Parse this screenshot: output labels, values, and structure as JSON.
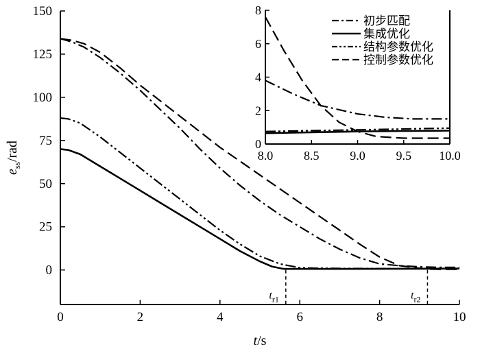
{
  "chart_data": {
    "type": "line",
    "xlabel": {
      "italic": "t",
      "rest": "/s"
    },
    "ylabel": {
      "italic": "e",
      "sub": "ss",
      "rest": "/rad"
    },
    "xlim": [
      0,
      10
    ],
    "ylim": [
      -20,
      150
    ],
    "x_ticks": [
      0,
      2,
      4,
      6,
      8,
      10
    ],
    "x_tick_labels": [
      "0",
      "2",
      "4",
      "6",
      "8",
      "10"
    ],
    "y_ticks": [
      0,
      25,
      50,
      75,
      100,
      125,
      150
    ],
    "y_tick_labels": [
      "0",
      "25",
      "50",
      "75",
      "100",
      "125",
      "150"
    ],
    "grid": false,
    "legend_position": "top-right",
    "series": [
      {
        "name": "初步匹配",
        "style": "dashdot",
        "x": [
          0,
          0.3,
          0.6,
          1.0,
          1.5,
          2.0,
          2.5,
          3.0,
          3.5,
          4.0,
          4.5,
          5.0,
          5.5,
          6.0,
          6.5,
          7.0,
          7.5,
          8.0,
          8.5,
          9.0,
          9.5,
          10.0
        ],
        "y": [
          134,
          132,
          129,
          123,
          114,
          104,
          93,
          82,
          70,
          59,
          49,
          40,
          32,
          25,
          18,
          12,
          7,
          3.5,
          2.5,
          1.8,
          1.5,
          1.5
        ]
      },
      {
        "name": "集成优化",
        "style": "solid",
        "x": [
          0,
          0.2,
          0.5,
          1.0,
          1.5,
          2.0,
          2.5,
          3.0,
          3.5,
          4.0,
          4.5,
          5.0,
          5.3,
          5.6,
          6.0,
          7.0,
          8.0,
          9.0,
          10.0
        ],
        "y": [
          70,
          69.5,
          67,
          60,
          53,
          46,
          39,
          32,
          25,
          18,
          11,
          5,
          2,
          0.6,
          0.6,
          0.6,
          0.7,
          0.75,
          0.8
        ]
      },
      {
        "name": "结构参数优化",
        "style": "dashdotdot",
        "x": [
          0,
          0.2,
          0.5,
          1.0,
          1.5,
          2.0,
          2.5,
          3.0,
          3.5,
          4.0,
          4.5,
          5.0,
          5.5,
          6.0,
          6.5,
          7.0,
          8.0,
          9.0,
          10.0
        ],
        "y": [
          88,
          87.5,
          85,
          77,
          68,
          59,
          50,
          41,
          32,
          23,
          15,
          8,
          3.5,
          1.3,
          1.0,
          0.9,
          0.8,
          0.8,
          0.9
        ]
      },
      {
        "name": "控制参数优化",
        "style": "dashed",
        "x": [
          0,
          0.3,
          0.6,
          1.0,
          1.5,
          2.0,
          2.5,
          3.0,
          3.5,
          4.0,
          4.5,
          5.0,
          5.5,
          6.0,
          6.5,
          7.0,
          7.5,
          8.0,
          8.5,
          9.0,
          9.2,
          9.5,
          10.0
        ],
        "y": [
          134,
          133,
          131,
          126,
          117,
          107,
          98,
          89,
          80,
          71,
          63,
          55,
          47,
          39,
          31,
          23,
          15,
          7.5,
          2.5,
          1.0,
          0.5,
          0.4,
          0.4
        ]
      }
    ],
    "markers": [
      {
        "x": 5.65,
        "label_italic": "t",
        "label_sub": "r1"
      },
      {
        "x": 9.2,
        "label_italic": "t",
        "label_sub": "r2"
      }
    ],
    "inset": {
      "xlim": [
        8.0,
        10.0
      ],
      "ylim": [
        0,
        8
      ],
      "x_ticks": [
        8.0,
        8.5,
        9.0,
        9.5,
        10.0
      ],
      "x_tick_labels": [
        "8.0",
        "8.5",
        "9.0",
        "9.5",
        "10.0"
      ],
      "y_ticks": [
        0,
        2,
        4,
        6,
        8
      ],
      "y_tick_labels": [
        "0",
        "2",
        "4",
        "6",
        "8"
      ],
      "series": [
        {
          "name": "初步匹配",
          "style": "dashdot",
          "x": [
            8.0,
            8.3,
            8.6,
            9.0,
            9.3,
            9.6,
            10.0
          ],
          "y": [
            3.8,
            3.0,
            2.3,
            1.8,
            1.6,
            1.5,
            1.5
          ]
        },
        {
          "name": "集成优化",
          "style": "solid",
          "x": [
            8.0,
            8.5,
            9.0,
            9.5,
            10.0
          ],
          "y": [
            0.65,
            0.7,
            0.75,
            0.78,
            0.8
          ]
        },
        {
          "name": "结构参数优化",
          "style": "dashdotdot",
          "x": [
            8.0,
            8.5,
            9.0,
            9.5,
            10.0
          ],
          "y": [
            0.75,
            0.8,
            0.85,
            0.9,
            0.95
          ]
        },
        {
          "name": "控制参数优化",
          "style": "dashed",
          "x": [
            8.0,
            8.2,
            8.4,
            8.6,
            8.8,
            9.0,
            9.2,
            9.5,
            10.0
          ],
          "y": [
            7.6,
            5.6,
            3.8,
            2.3,
            1.3,
            0.75,
            0.45,
            0.35,
            0.35
          ]
        }
      ]
    }
  }
}
